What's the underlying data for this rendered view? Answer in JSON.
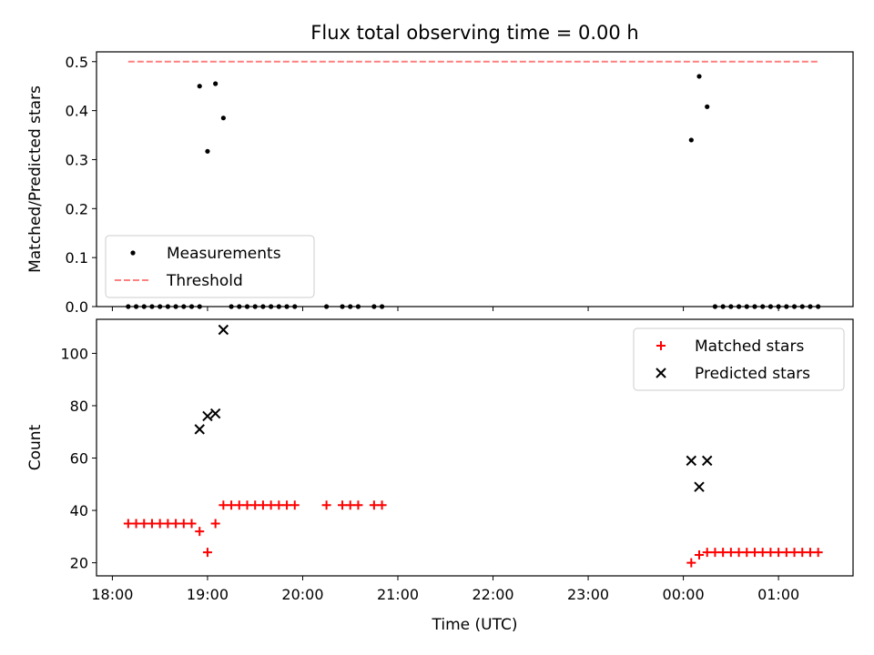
{
  "chart_data": [
    {
      "type": "scatter",
      "title": "Flux total observing time = 0.00 h",
      "ylabel": "Matched/Predicted stars",
      "xlabel": "",
      "ylim": [
        0,
        0.52
      ],
      "yticks": [
        "0.0",
        "0.1",
        "0.2",
        "0.3",
        "0.4",
        "0.5"
      ],
      "legend_placement": "lower-left",
      "series": [
        {
          "name": "Measurements",
          "style": "point",
          "color": "#000000",
          "points": [
            [
              "18:10",
              0
            ],
            [
              "18:15",
              0
            ],
            [
              "18:20",
              0
            ],
            [
              "18:25",
              0
            ],
            [
              "18:30",
              0
            ],
            [
              "18:35",
              0
            ],
            [
              "18:40",
              0
            ],
            [
              "18:45",
              0
            ],
            [
              "18:50",
              0
            ],
            [
              "18:55",
              0
            ],
            [
              "18:55",
              0.45
            ],
            [
              "19:00",
              0.317
            ],
            [
              "19:05",
              0.455
            ],
            [
              "19:10",
              0.385
            ],
            [
              "19:15",
              0
            ],
            [
              "19:20",
              0
            ],
            [
              "19:25",
              0
            ],
            [
              "19:30",
              0
            ],
            [
              "19:35",
              0
            ],
            [
              "19:40",
              0
            ],
            [
              "19:45",
              0
            ],
            [
              "19:50",
              0
            ],
            [
              "19:55",
              0
            ],
            [
              "20:15",
              0
            ],
            [
              "20:25",
              0
            ],
            [
              "20:30",
              0
            ],
            [
              "20:35",
              0
            ],
            [
              "20:45",
              0
            ],
            [
              "20:50",
              0
            ],
            [
              "00:05",
              0.34
            ],
            [
              "00:10",
              0.47
            ],
            [
              "00:15",
              0.408
            ],
            [
              "00:20",
              0
            ],
            [
              "00:25",
              0
            ],
            [
              "00:30",
              0
            ],
            [
              "00:35",
              0
            ],
            [
              "00:40",
              0
            ],
            [
              "00:45",
              0
            ],
            [
              "00:50",
              0
            ],
            [
              "00:55",
              0
            ],
            [
              "01:00",
              0
            ],
            [
              "01:05",
              0
            ],
            [
              "01:10",
              0
            ],
            [
              "01:15",
              0
            ],
            [
              "01:20",
              0
            ],
            [
              "01:25",
              0
            ]
          ]
        },
        {
          "name": "Threshold",
          "style": "dashed-line",
          "color": "#ff8080",
          "points": [
            [
              "18:10",
              0.5
            ],
            [
              "01:25",
              0.5
            ]
          ]
        }
      ]
    },
    {
      "type": "scatter",
      "title": "",
      "ylabel": "Count",
      "xlabel": "Time (UTC)",
      "ylim": [
        15,
        113
      ],
      "yticks": [
        "20",
        "40",
        "60",
        "80",
        "100"
      ],
      "xticks": [
        "18:00",
        "19:00",
        "20:00",
        "21:00",
        "22:00",
        "23:00",
        "00:00",
        "01:00"
      ],
      "legend_placement": "upper-right",
      "series": [
        {
          "name": "Matched stars",
          "style": "plus",
          "color": "#ff0000",
          "points": [
            [
              "18:10",
              35
            ],
            [
              "18:15",
              35
            ],
            [
              "18:20",
              35
            ],
            [
              "18:25",
              35
            ],
            [
              "18:30",
              35
            ],
            [
              "18:35",
              35
            ],
            [
              "18:40",
              35
            ],
            [
              "18:45",
              35
            ],
            [
              "18:50",
              35
            ],
            [
              "18:55",
              32
            ],
            [
              "19:00",
              24
            ],
            [
              "19:05",
              35
            ],
            [
              "19:10",
              42
            ],
            [
              "19:15",
              42
            ],
            [
              "19:20",
              42
            ],
            [
              "19:25",
              42
            ],
            [
              "19:30",
              42
            ],
            [
              "19:35",
              42
            ],
            [
              "19:40",
              42
            ],
            [
              "19:45",
              42
            ],
            [
              "19:50",
              42
            ],
            [
              "19:55",
              42
            ],
            [
              "20:15",
              42
            ],
            [
              "20:25",
              42
            ],
            [
              "20:30",
              42
            ],
            [
              "20:35",
              42
            ],
            [
              "20:45",
              42
            ],
            [
              "20:50",
              42
            ],
            [
              "00:05",
              20
            ],
            [
              "00:10",
              23
            ],
            [
              "00:15",
              24
            ],
            [
              "00:20",
              24
            ],
            [
              "00:25",
              24
            ],
            [
              "00:30",
              24
            ],
            [
              "00:35",
              24
            ],
            [
              "00:40",
              24
            ],
            [
              "00:45",
              24
            ],
            [
              "00:50",
              24
            ],
            [
              "00:55",
              24
            ],
            [
              "01:00",
              24
            ],
            [
              "01:05",
              24
            ],
            [
              "01:10",
              24
            ],
            [
              "01:15",
              24
            ],
            [
              "01:20",
              24
            ],
            [
              "01:25",
              24
            ]
          ]
        },
        {
          "name": "Predicted stars",
          "style": "x",
          "color": "#000000",
          "points": [
            [
              "18:55",
              71
            ],
            [
              "19:00",
              76
            ],
            [
              "19:05",
              77
            ],
            [
              "19:10",
              109
            ],
            [
              "00:05",
              59
            ],
            [
              "00:10",
              49
            ],
            [
              "00:15",
              59
            ]
          ]
        }
      ]
    }
  ]
}
